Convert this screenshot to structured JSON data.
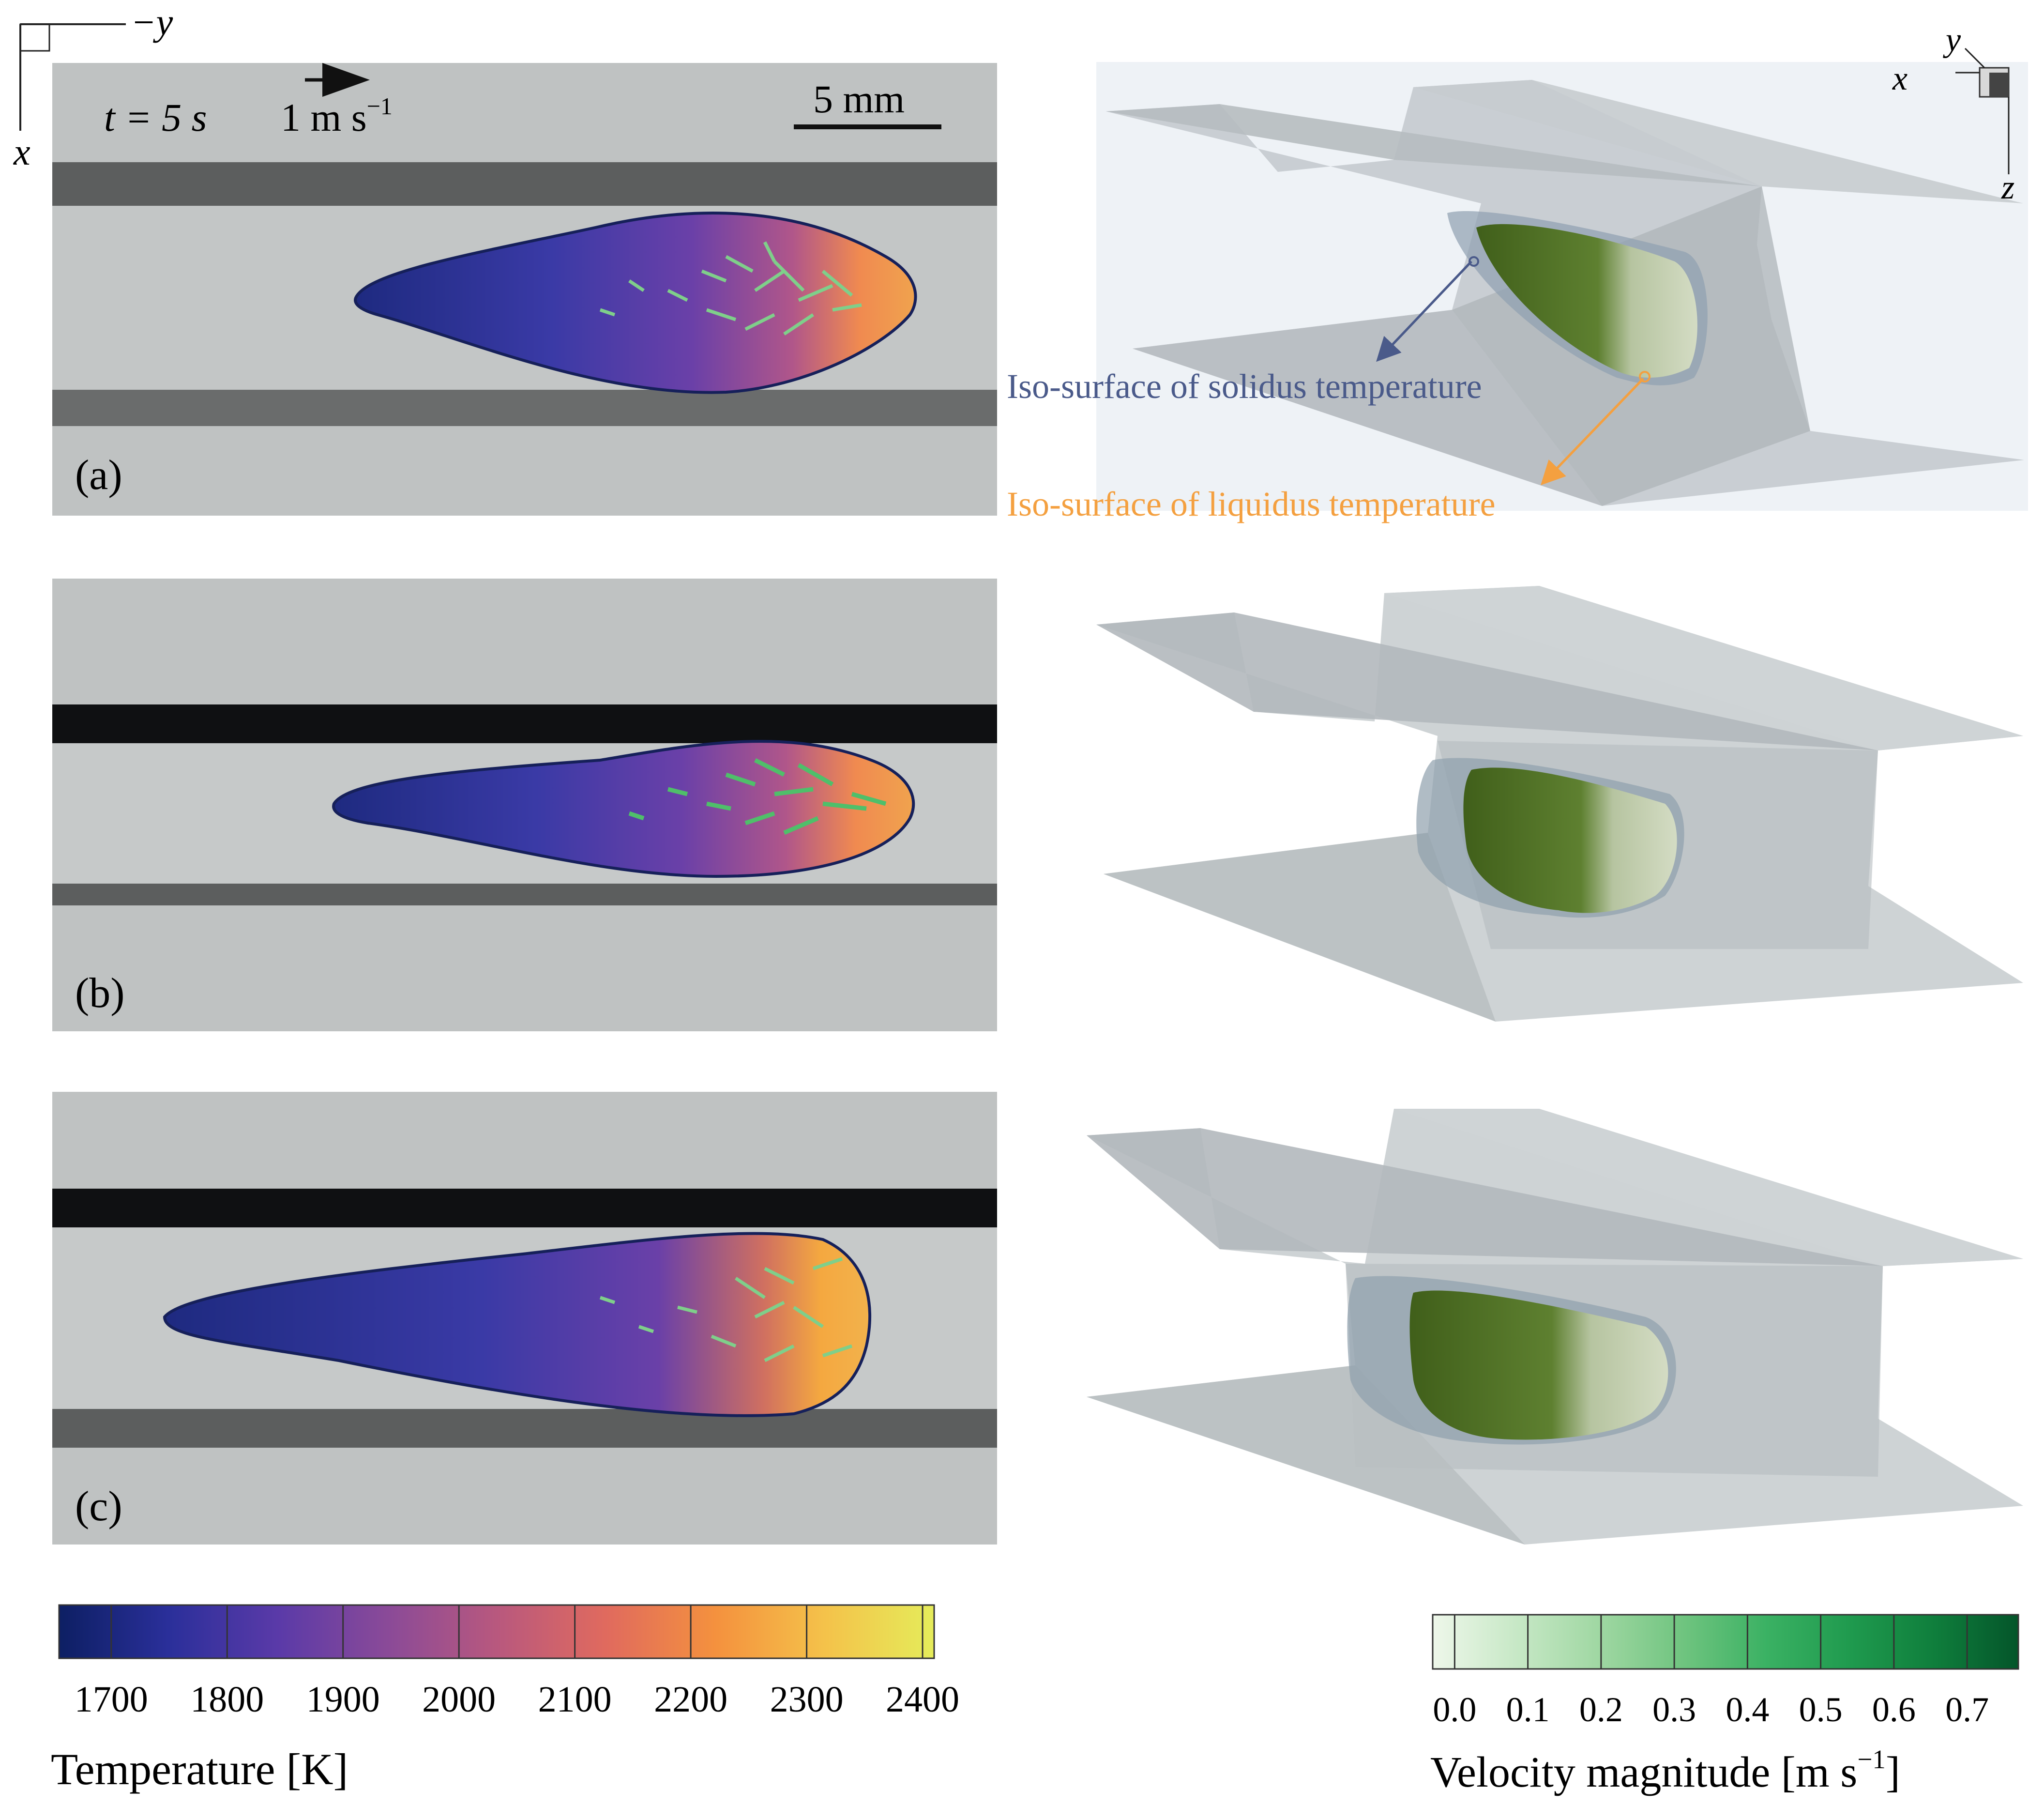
{
  "axis_top_left": {
    "minus_y": "−y",
    "x": "x"
  },
  "axis_top_right": {
    "y": "y",
    "x": "x",
    "z": "z"
  },
  "panel_a": {
    "time_label": "t = 5 s",
    "velocity_ref_label": "1 m s",
    "velocity_ref_exp": "−1",
    "scale_label": "5 mm",
    "panel_label": "(a)"
  },
  "panel_b": {
    "panel_label": "(b)"
  },
  "panel_c": {
    "panel_label": "(c)"
  },
  "annotations": {
    "solidus": "Iso-surface of solidus temperature",
    "liquidus": "Iso-surface of liquidus temperature"
  },
  "temperature_colorbar": {
    "title": "Temperature [K]",
    "ticks": [
      "1700",
      "1800",
      "1900",
      "2000",
      "2100",
      "2200",
      "2300",
      "2400"
    ],
    "min": 1655,
    "max": 2410,
    "colors": [
      "#0d1f63",
      "#2a2f9a",
      "#5a3aa8",
      "#8a4a98",
      "#b8587e",
      "#e06a5e",
      "#f4913e",
      "#f4c24a",
      "#e5ec5a"
    ]
  },
  "velocity_colorbar": {
    "title": "Velocity magnitude [m s",
    "title_exp": "−1",
    "title_close": "]",
    "ticks": [
      "0.0",
      "0.1",
      "0.2",
      "0.3",
      "0.4",
      "0.5",
      "0.6",
      "0.7"
    ],
    "min": -0.03,
    "max": 0.77,
    "colors": [
      "#eef7ea",
      "#c7e8c6",
      "#9fd7a2",
      "#6fc47f",
      "#3ab163",
      "#1f9a4e",
      "#0f7e3c",
      "#04552a"
    ]
  }
}
